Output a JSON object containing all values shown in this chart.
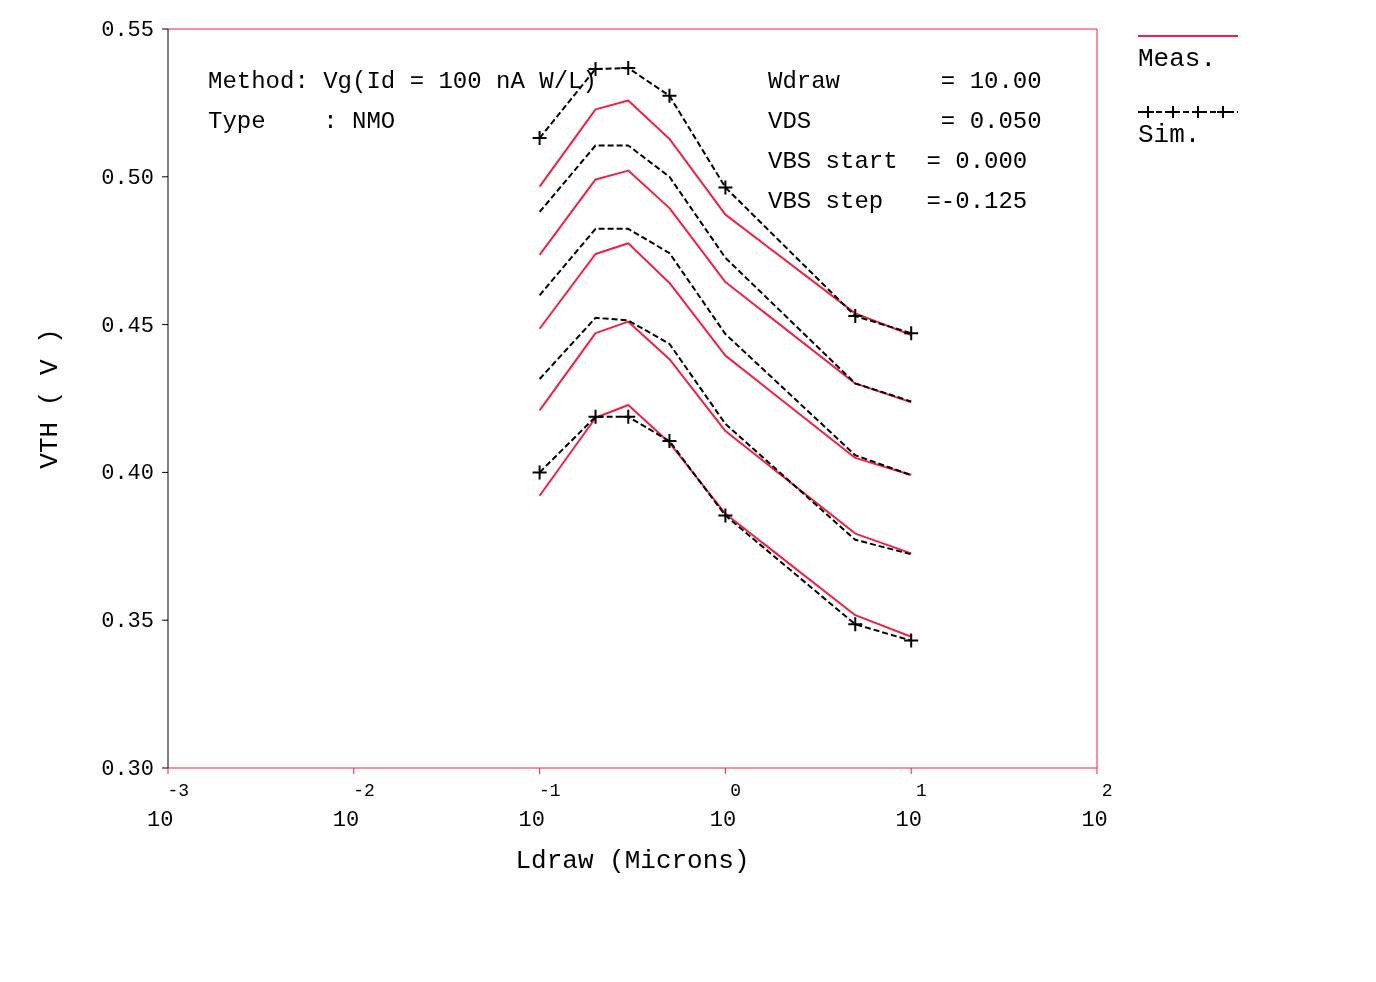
{
  "chart_data": {
    "type": "line",
    "xlabel": "Ldraw (Microns)",
    "ylabel": "VTH ( V )",
    "log": "x",
    "xlim": [
      0.001,
      100
    ],
    "xticks": [
      {
        "value": 0.001,
        "label": "10$^{-3}$"
      },
      {
        "value": 0.01,
        "label": "10$^{-2}$"
      },
      {
        "value": 0.1,
        "label": "10$^{-1}$"
      },
      {
        "value": 1,
        "label": "10$^{0}$"
      },
      {
        "value": 10,
        "label": "10$^{1}$"
      },
      {
        "value": 100,
        "label": "10$^{2}$"
      }
    ],
    "ylim": [
      0.3,
      0.55
    ],
    "yticks": [
      {
        "value": 0.3,
        "label": "0.30"
      },
      {
        "value": 0.35,
        "label": "0.35"
      },
      {
        "value": 0.4,
        "label": "0.40"
      },
      {
        "value": 0.45,
        "label": "0.45"
      },
      {
        "value": 0.5,
        "label": "0.50"
      },
      {
        "value": 0.55,
        "label": "0.55"
      }
    ],
    "grid": false,
    "legend": "top right",
    "x": [
      0.1,
      0.2,
      0.3,
      0.5,
      1,
      5,
      10
    ],
    "annotations": [
      "Method: Vg(Id = 100 nA W/L)",
      "Type    : NMO",
      "Wdraw       = 10.00",
      "VDS         = 0.050",
      "VBS start  = 0.000",
      "VBS step   =-0.125"
    ],
    "series": [
      {
        "name": "Meas.",
        "color": "#ee2244",
        "line_style": "solid",
        "marker": "none",
        "values": [
          0.4967,
          0.5228,
          0.5258,
          0.5128,
          0.4872,
          0.4538,
          0.4465
        ]
      },
      {
        "color": "#ee2244",
        "line_style": "solid",
        "marker": "none",
        "values": [
          0.4736,
          0.4991,
          0.5021,
          0.4894,
          0.4644,
          0.4301,
          0.4237
        ]
      },
      {
        "color": "#ee2244",
        "line_style": "solid",
        "marker": "none",
        "values": [
          0.4486,
          0.4739,
          0.4775,
          0.4641,
          0.4395,
          0.4049,
          0.3991
        ]
      },
      {
        "color": "#ee2244",
        "line_style": "solid",
        "marker": "none",
        "values": [
          0.421,
          0.4471,
          0.451,
          0.4383,
          0.414,
          0.3793,
          0.3726
        ]
      },
      {
        "color": "#ee2244",
        "line_style": "solid",
        "marker": "none",
        "values": [
          0.3921,
          0.4185,
          0.4228,
          0.41,
          0.386,
          0.3517,
          0.3444
        ]
      },
      {
        "name": "Sim.",
        "color": "#000000",
        "line_style": "dashed",
        "marker": "cross",
        "values": [
          0.5131,
          0.5365,
          0.5368,
          0.5274,
          0.4964,
          0.4529,
          0.4471
        ]
      },
      {
        "color": "#000000",
        "line_style": "dashed",
        "marker": "none",
        "values": [
          0.4881,
          0.5106,
          0.5106,
          0.5,
          0.4726,
          0.4301,
          0.424
        ]
      },
      {
        "color": "#000000",
        "line_style": "dashed",
        "marker": "none",
        "values": [
          0.4599,
          0.4824,
          0.4824,
          0.4742,
          0.4468,
          0.4058,
          0.3991
        ]
      },
      {
        "color": "#000000",
        "line_style": "dashed",
        "marker": "none",
        "values": [
          0.4316,
          0.4523,
          0.4514,
          0.4435,
          0.4164,
          0.3772,
          0.3723
        ]
      },
      {
        "color": "#000000",
        "line_style": "dashed",
        "marker": "cross",
        "values": [
          0.4,
          0.4188,
          0.4188,
          0.4106,
          0.3854,
          0.3486,
          0.3431
        ]
      }
    ]
  }
}
